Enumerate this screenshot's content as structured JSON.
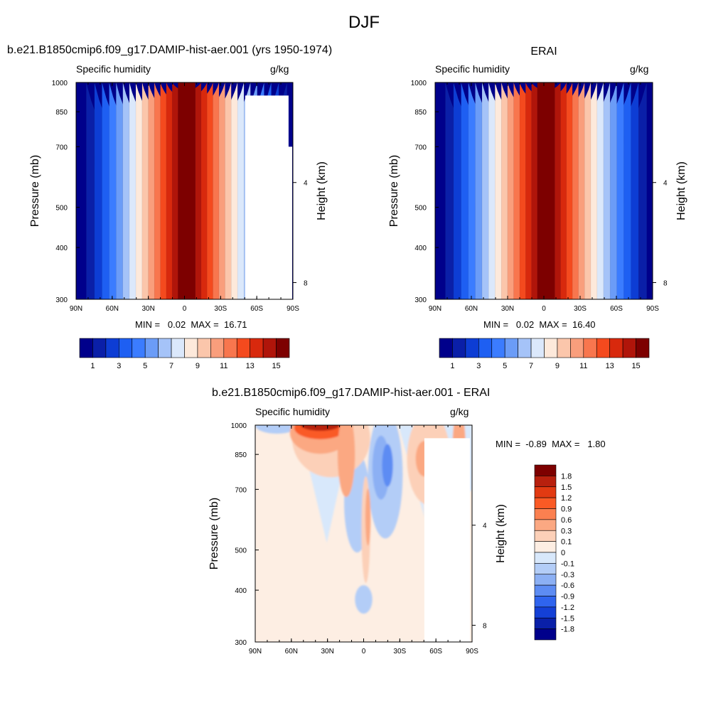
{
  "page_title": "DJF",
  "panels": [
    {
      "title": "b.e21.B1850cmip6.f09_g17.DAMIP-hist-aer.001 (yrs 1950-1974)",
      "left_label": "Specific humidity",
      "right_label": "g/kg",
      "stats": "MIN =   0.02  MAX =  16.71"
    },
    {
      "title": "ERAI",
      "left_label": "Specific humidity",
      "right_label": "g/kg",
      "stats": "MIN =   0.02  MAX =  16.40"
    },
    {
      "title": "b.e21.B1850cmip6.f09_g17.DAMIP-hist-aer.001 - ERAI",
      "left_label": "Specific humidity",
      "right_label": "g/kg",
      "stats": "MIN =  -0.89  MAX =   1.80"
    }
  ],
  "chart_data": [
    {
      "type": "heatmap",
      "title": "b.e21.B1850cmip6.f09_g17.DAMIP-hist-aer.001 (yrs 1950-1974)",
      "subtitle_left": "Specific humidity",
      "subtitle_right": "g/kg",
      "x_ticks": [
        "90N",
        "60N",
        "30N",
        "0",
        "30S",
        "60S",
        "90S"
      ],
      "y_label": "Pressure (mb)",
      "y_ticks": [
        300,
        400,
        500,
        700,
        850,
        1000
      ],
      "y2_label": "Height (km)",
      "y2_ticks": [
        8,
        4
      ],
      "min": 0.02,
      "max": 16.71,
      "colorbar_labels": [
        "1",
        "3",
        "5",
        "7",
        "9",
        "11",
        "13",
        "15"
      ],
      "colors": [
        "#00008b",
        "#0a1fa8",
        "#0d3dd4",
        "#1e5ff2",
        "#3b7cff",
        "#6b9cf7",
        "#a5c3f8",
        "#dbe8fb",
        "#fde9db",
        "#fbc6ab",
        "#f99e7c",
        "#f8764e",
        "#f44a1e",
        "#d8290d",
        "#b0150a",
        "#7d0000"
      ]
    },
    {
      "type": "heatmap",
      "title": "ERAI",
      "subtitle_left": "Specific humidity",
      "subtitle_right": "g/kg",
      "x_ticks": [
        "90N",
        "60N",
        "30N",
        "0",
        "30S",
        "60S",
        "90S"
      ],
      "y_label": "Pressure (mb)",
      "y_ticks": [
        300,
        400,
        500,
        700,
        850,
        1000
      ],
      "y2_label": "Height (km)",
      "y2_ticks": [
        8,
        4
      ],
      "min": 0.02,
      "max": 16.4,
      "colorbar_labels": [
        "1",
        "3",
        "5",
        "7",
        "9",
        "11",
        "13",
        "15"
      ],
      "colors": [
        "#00008b",
        "#0a1fa8",
        "#0d3dd4",
        "#1e5ff2",
        "#3b7cff",
        "#6b9cf7",
        "#a5c3f8",
        "#dbe8fb",
        "#fde9db",
        "#fbc6ab",
        "#f99e7c",
        "#f8764e",
        "#f44a1e",
        "#d8290d",
        "#b0150a",
        "#7d0000"
      ]
    },
    {
      "type": "heatmap",
      "title": "b.e21.B1850cmip6.f09_g17.DAMIP-hist-aer.001 - ERAI",
      "subtitle_left": "Specific humidity",
      "subtitle_right": "g/kg",
      "x_ticks": [
        "90N",
        "60N",
        "30N",
        "0",
        "30S",
        "60S",
        "90S"
      ],
      "y_label": "Pressure (mb)",
      "y_ticks": [
        300,
        400,
        500,
        700,
        850,
        1000
      ],
      "y2_label": "Height (km)",
      "y2_ticks": [
        8,
        4
      ],
      "min": -0.89,
      "max": 1.8,
      "colorbar_labels": [
        "1.8",
        "1.5",
        "1.2",
        "0.9",
        "0.6",
        "0.3",
        "0.1",
        "0",
        "-0.1",
        "-0.3",
        "-0.6",
        "-0.9",
        "-1.2",
        "-1.5",
        "-1.8"
      ],
      "colors": [
        "#7d0000",
        "#b8200e",
        "#e23a12",
        "#fa5a25",
        "#fb8050",
        "#fba882",
        "#fcd0b8",
        "#fdeee3",
        "#d8e8fb",
        "#b3cdf7",
        "#8cb0f4",
        "#5d8cf3",
        "#2f64ee",
        "#1440d6",
        "#0a20a8",
        "#00008b"
      ]
    }
  ]
}
